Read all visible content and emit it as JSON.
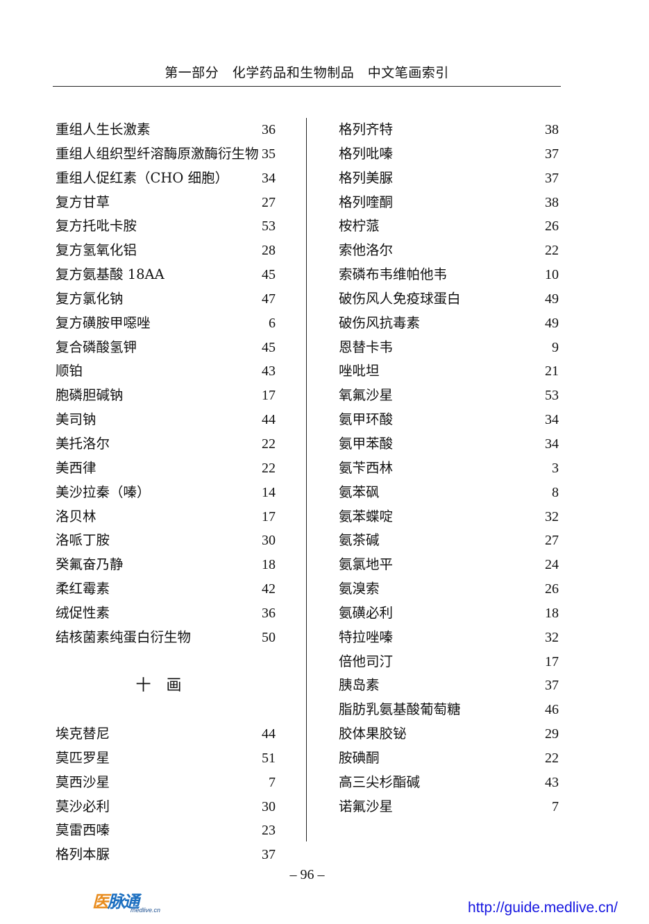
{
  "header": {
    "title": "第一部分　化学药品和生物制品　中文笔画索引"
  },
  "left_column": {
    "entries_before": [
      {
        "name": "重组人生长激素",
        "page": "36"
      },
      {
        "name": "重组人组织型纤溶酶原激酶衍生物",
        "page": "35"
      },
      {
        "name": "重组人促红素（CHO 细胞）",
        "page": "34"
      },
      {
        "name": "复方甘草",
        "page": "27"
      },
      {
        "name": "复方托吡卡胺",
        "page": "53"
      },
      {
        "name": "复方氢氧化铝",
        "page": "28"
      },
      {
        "name": "复方氨基酸 18AA",
        "page": "45"
      },
      {
        "name": "复方氯化钠",
        "page": "47"
      },
      {
        "name": "复方磺胺甲噁唑",
        "page": "6"
      },
      {
        "name": "复合磷酸氢钾",
        "page": "45"
      },
      {
        "name": "顺铂",
        "page": "43"
      },
      {
        "name": "胞磷胆碱钠",
        "page": "17"
      },
      {
        "name": "美司钠",
        "page": "44"
      },
      {
        "name": "美托洛尔",
        "page": "22"
      },
      {
        "name": "美西律",
        "page": "22"
      },
      {
        "name": "美沙拉秦（嗪）",
        "page": "14"
      },
      {
        "name": "洛贝林",
        "page": "17"
      },
      {
        "name": "洛哌丁胺",
        "page": "30"
      },
      {
        "name": "癸氟奋乃静",
        "page": "18"
      },
      {
        "name": "柔红霉素",
        "page": "42"
      },
      {
        "name": "绒促性素",
        "page": "36"
      },
      {
        "name": "结核菌素纯蛋白衍生物",
        "page": "50"
      }
    ],
    "section_heading": "十　画",
    "entries_after": [
      {
        "name": "埃克替尼",
        "page": "44"
      },
      {
        "name": "莫匹罗星",
        "page": "51"
      },
      {
        "name": "莫西沙星",
        "page": "7"
      },
      {
        "name": "莫沙必利",
        "page": "30"
      },
      {
        "name": "莫雷西嗪",
        "page": "23"
      },
      {
        "name": "格列本脲",
        "page": "37"
      }
    ]
  },
  "right_column": {
    "entries": [
      {
        "name": "格列齐特",
        "page": "38"
      },
      {
        "name": "格列吡嗪",
        "page": "37"
      },
      {
        "name": "格列美脲",
        "page": "37"
      },
      {
        "name": "格列喹酮",
        "page": "38"
      },
      {
        "name": "桉柠蒎",
        "page": "26"
      },
      {
        "name": "索他洛尔",
        "page": "22"
      },
      {
        "name": "索磷布韦维帕他韦",
        "page": "10"
      },
      {
        "name": "破伤风人免疫球蛋白",
        "page": "49"
      },
      {
        "name": "破伤风抗毒素",
        "page": "49"
      },
      {
        "name": "恩替卡韦",
        "page": "9"
      },
      {
        "name": "唑吡坦",
        "page": "21"
      },
      {
        "name": "氧氟沙星",
        "page": "53"
      },
      {
        "name": "氨甲环酸",
        "page": "34"
      },
      {
        "name": "氨甲苯酸",
        "page": "34"
      },
      {
        "name": "氨苄西林",
        "page": "3"
      },
      {
        "name": "氨苯砜",
        "page": "8"
      },
      {
        "name": "氨苯蝶啶",
        "page": "32"
      },
      {
        "name": "氨茶碱",
        "page": "27"
      },
      {
        "name": "氨氯地平",
        "page": "24"
      },
      {
        "name": "氨溴索",
        "page": "26"
      },
      {
        "name": "氨磺必利",
        "page": "18"
      },
      {
        "name": "特拉唑嗪",
        "page": "32"
      },
      {
        "name": "倍他司汀",
        "page": "17"
      },
      {
        "name": "胰岛素",
        "page": "37"
      },
      {
        "name": "脂肪乳氨基酸葡萄糖",
        "page": "46"
      },
      {
        "name": "胶体果胶铋",
        "page": "29"
      },
      {
        "name": "胺碘酮",
        "page": "22"
      },
      {
        "name": "高三尖杉酯碱",
        "page": "43"
      },
      {
        "name": "诺氟沙星",
        "page": "7"
      }
    ]
  },
  "footer": {
    "page_number": "– 96 –",
    "logo_text": "医脉通",
    "logo_sub": "medlive.cn",
    "url": "http://guide.medlive.cn/",
    "colors": {
      "logo_blue": "#1c6fc0",
      "logo_orange": "#e88c1e",
      "url_blue": "#1515e0"
    }
  }
}
